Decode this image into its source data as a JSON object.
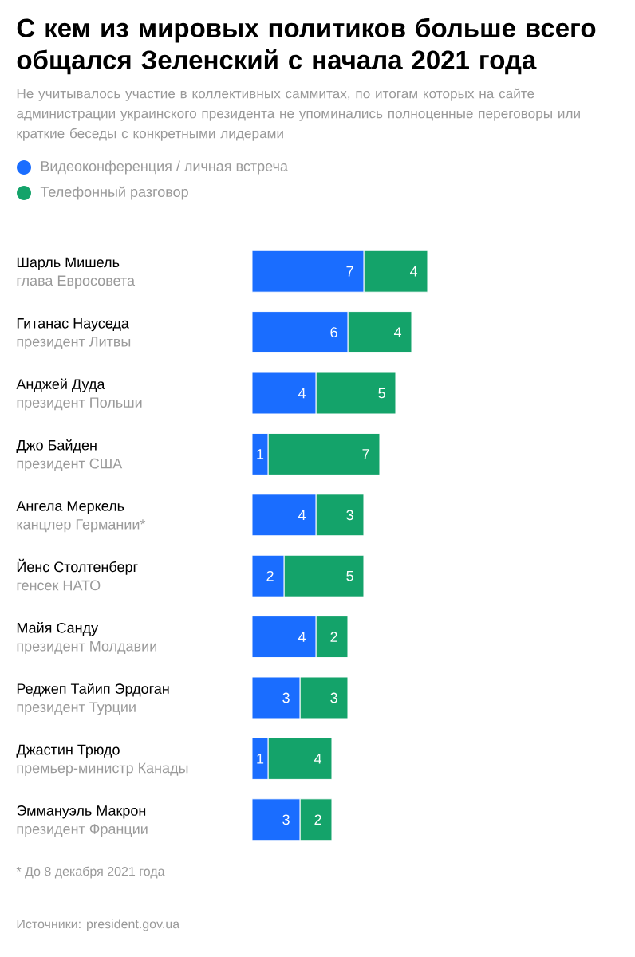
{
  "chart_data": {
    "type": "bar",
    "orientation": "horizontal",
    "stacked": true,
    "data_labels": true,
    "legend": "top left",
    "title": "С кем из мировых политиков больше всего общался Зеленский с начала 2021 года",
    "subtitle": "Не учитывалось участие в коллективных саммитах, по итогам которых на сайте администрации украинского президента не упоминались полноценные переговоры или краткие беседы с конкретными лидерами",
    "categories": [
      "Шарль Мишель",
      "Гитанас Науседа",
      "Анджей Дуда",
      "Джо Байден",
      "Ангела Меркель",
      "Йенс Столтенберг",
      "Майя Санду",
      "Реджеп Тайип Эрдоган",
      "Джастин Трюдо",
      "Эммануэль Макрон"
    ],
    "series": [
      {
        "name": "Видеоконференция / личная встреча",
        "color": "#1a6dff",
        "values": [
          7,
          6,
          4,
          1,
          4,
          2,
          4,
          3,
          1,
          3
        ]
      },
      {
        "name": "Телефонный разговор",
        "color": "#14a36a",
        "values": [
          4,
          4,
          5,
          7,
          3,
          5,
          2,
          3,
          4,
          2
        ]
      }
    ],
    "annotations": [
      "глава Евросовета",
      "президент Литвы",
      "президент Польши",
      "президент США",
      "канцлер Германии*",
      "генсек НАТО",
      "президент Молдавии",
      "президент Турции",
      "премьер-министр Канады",
      "президент Франции",
      "* До 8 декабря 2021 года",
      "Источники: president.gov.ua"
    ]
  }
}
